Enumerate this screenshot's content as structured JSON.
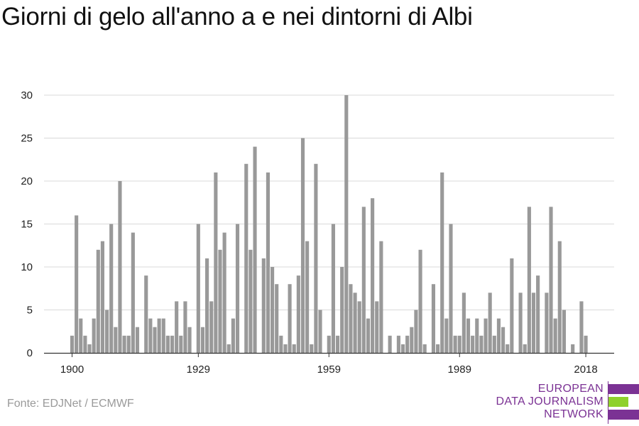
{
  "title": "Giorni di gelo all'anno a e nei dintorni di Albi",
  "source": "Fonte: EDJNet / ECMWF",
  "logo": {
    "line1": "EUROPEAN",
    "line2": "DATA JOURNALISM",
    "line3": "NETWORK",
    "color_purple": "#7b3294",
    "color_green": "#8fd12c"
  },
  "colors": {
    "bar": "#999999",
    "grid": "#d9d9d9",
    "axis": "#333333",
    "text": "#222222"
  },
  "chart_data": {
    "type": "bar",
    "title": "Giorni di gelo all'anno a e nei dintorni di Albi",
    "xlabel": "",
    "ylabel": "",
    "ylim": [
      0,
      30
    ],
    "yticks": [
      0,
      5,
      10,
      15,
      20,
      25,
      30
    ],
    "xticks": [
      1900,
      1929,
      1959,
      1989,
      2018
    ],
    "grid": true,
    "x": [
      1900,
      1901,
      1902,
      1903,
      1904,
      1905,
      1906,
      1907,
      1908,
      1909,
      1910,
      1911,
      1912,
      1913,
      1914,
      1915,
      1916,
      1917,
      1918,
      1919,
      1920,
      1921,
      1922,
      1923,
      1924,
      1925,
      1926,
      1927,
      1928,
      1929,
      1930,
      1931,
      1932,
      1933,
      1934,
      1935,
      1936,
      1937,
      1938,
      1939,
      1940,
      1941,
      1942,
      1943,
      1944,
      1945,
      1946,
      1947,
      1948,
      1949,
      1950,
      1951,
      1952,
      1953,
      1954,
      1955,
      1956,
      1957,
      1958,
      1959,
      1960,
      1961,
      1962,
      1963,
      1964,
      1965,
      1966,
      1967,
      1968,
      1969,
      1970,
      1971,
      1972,
      1973,
      1974,
      1975,
      1976,
      1977,
      1978,
      1979,
      1980,
      1981,
      1982,
      1983,
      1984,
      1985,
      1986,
      1987,
      1988,
      1989,
      1990,
      1991,
      1992,
      1993,
      1994,
      1995,
      1996,
      1997,
      1998,
      1999,
      2000,
      2001,
      2002,
      2003,
      2004,
      2005,
      2006,
      2007,
      2008,
      2009,
      2010,
      2011,
      2012,
      2013,
      2014,
      2015,
      2016,
      2017,
      2018,
      2019
    ],
    "values": [
      2,
      16,
      4,
      2,
      1,
      4,
      12,
      13,
      5,
      15,
      3,
      20,
      2,
      2,
      14,
      3,
      0,
      9,
      4,
      3,
      4,
      4,
      2,
      2,
      6,
      2,
      6,
      3,
      0,
      15,
      3,
      11,
      6,
      21,
      12,
      14,
      1,
      4,
      15,
      0,
      22,
      12,
      24,
      0,
      11,
      21,
      10,
      8,
      2,
      1,
      8,
      1,
      9,
      25,
      13,
      1,
      22,
      5,
      0,
      2,
      15,
      2,
      10,
      30,
      8,
      7,
      6,
      17,
      4,
      18,
      6,
      13,
      0,
      2,
      0,
      2,
      1,
      2,
      3,
      5,
      12,
      1,
      0,
      8,
      1,
      21,
      4,
      15,
      2,
      2,
      7,
      4,
      2,
      4,
      2,
      4,
      7,
      2,
      4,
      3,
      1,
      11,
      0,
      7,
      1,
      17,
      7,
      9,
      0,
      7,
      17,
      4,
      13,
      5,
      0,
      1,
      0,
      6,
      2,
      0
    ]
  }
}
